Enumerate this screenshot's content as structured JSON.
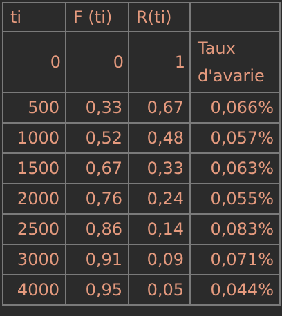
{
  "header": [
    "ti",
    "F (ti)",
    "R(ti)",
    ""
  ],
  "first_row": [
    "0",
    "0",
    "1",
    "Taux d'avarie"
  ],
  "rows": [
    [
      "500",
      "0,33",
      "0,67",
      "0,066%"
    ],
    [
      "1000",
      "0,52",
      "0,48",
      "0,057%"
    ],
    [
      "1500",
      "0,67",
      "0,33",
      "0,063%"
    ],
    [
      "2000",
      "0,76",
      "0,24",
      "0,055%"
    ],
    [
      "2500",
      "0,86",
      "0,14",
      "0,083%"
    ],
    [
      "3000",
      "0,91",
      "0,09",
      "0,071%"
    ],
    [
      "4000",
      "0,95",
      "0,05",
      "0,044%"
    ]
  ],
  "colors": {
    "background": "#2b2b2b",
    "text": "#e59a7e",
    "grid": "#7a7a7a"
  }
}
